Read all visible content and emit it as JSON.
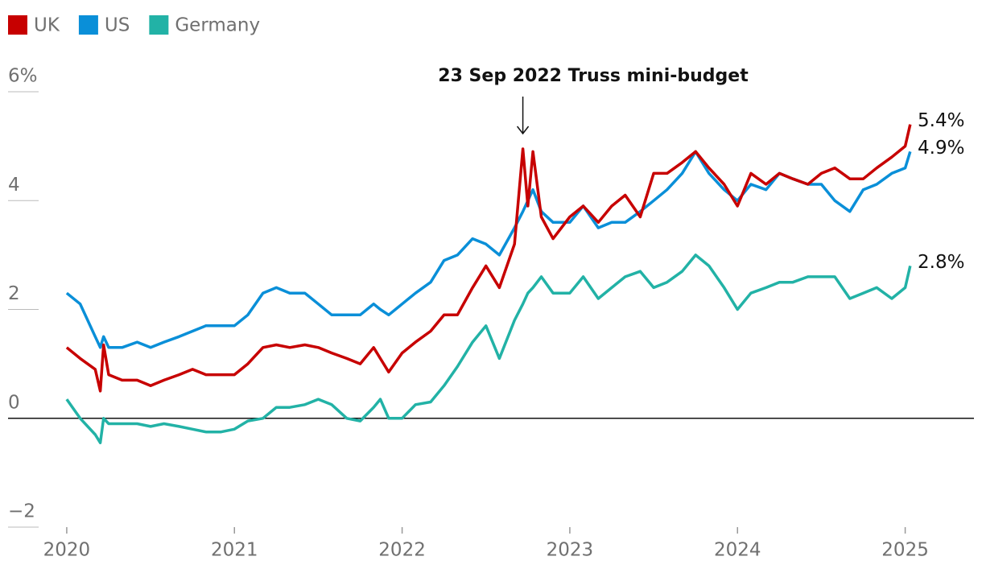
{
  "chart_data": {
    "type": "line",
    "x": [
      2020,
      2020.08,
      2020.17,
      2020.2,
      2020.22,
      2020.25,
      2020.33,
      2020.42,
      2020.5,
      2020.58,
      2020.67,
      2020.75,
      2020.83,
      2020.92,
      2021,
      2021.08,
      2021.17,
      2021.25,
      2021.33,
      2021.42,
      2021.5,
      2021.58,
      2021.67,
      2021.75,
      2021.83,
      2021.87,
      2021.92,
      2022,
      2022.08,
      2022.17,
      2022.25,
      2022.33,
      2022.42,
      2022.5,
      2022.58,
      2022.67,
      2022.72,
      2022.75,
      2022.78,
      2022.83,
      2022.9,
      2023,
      2023.08,
      2023.17,
      2023.25,
      2023.33,
      2023.42,
      2023.5,
      2023.58,
      2023.67,
      2023.75,
      2023.83,
      2023.92,
      2024,
      2024.08,
      2024.17,
      2024.25,
      2024.33,
      2024.42,
      2024.5,
      2024.58,
      2024.67,
      2024.75,
      2024.83,
      2024.92,
      2025,
      2025.03
    ],
    "series": [
      {
        "name": "UK",
        "color": "#c70000",
        "end_label": "5.4%",
        "values": [
          1.3,
          1.1,
          0.9,
          0.5,
          1.35,
          0.8,
          0.7,
          0.7,
          0.6,
          0.7,
          0.8,
          0.9,
          0.8,
          0.8,
          0.8,
          1.0,
          1.3,
          1.35,
          1.3,
          1.35,
          1.3,
          1.2,
          1.1,
          1.0,
          1.3,
          1.1,
          0.85,
          1.2,
          1.4,
          1.6,
          1.9,
          1.9,
          2.4,
          2.8,
          2.4,
          3.2,
          4.95,
          3.9,
          4.9,
          3.7,
          3.3,
          3.7,
          3.9,
          3.6,
          3.9,
          4.1,
          3.7,
          4.5,
          4.5,
          4.7,
          4.9,
          4.6,
          4.3,
          3.9,
          4.5,
          4.3,
          4.5,
          4.4,
          4.3,
          4.5,
          4.6,
          4.4,
          4.4,
          4.6,
          4.8,
          5.0,
          5.4
        ]
      },
      {
        "name": "US",
        "color": "#0a8fd8",
        "end_label": "4.9%",
        "values": [
          2.3,
          2.1,
          1.5,
          1.3,
          1.5,
          1.3,
          1.3,
          1.4,
          1.3,
          1.4,
          1.5,
          1.6,
          1.7,
          1.7,
          1.7,
          1.9,
          2.3,
          2.4,
          2.3,
          2.3,
          2.1,
          1.9,
          1.9,
          1.9,
          2.1,
          2.0,
          1.9,
          2.1,
          2.3,
          2.5,
          2.9,
          3.0,
          3.3,
          3.2,
          3.0,
          3.5,
          3.8,
          4.0,
          4.2,
          3.8,
          3.6,
          3.6,
          3.9,
          3.5,
          3.6,
          3.6,
          3.8,
          4.0,
          4.2,
          4.5,
          4.9,
          4.5,
          4.2,
          4.0,
          4.3,
          4.2,
          4.5,
          4.4,
          4.3,
          4.3,
          4.0,
          3.8,
          4.2,
          4.3,
          4.5,
          4.6,
          4.9
        ]
      },
      {
        "name": "Germany",
        "color": "#22b2a6",
        "end_label": "2.8%",
        "values": [
          0.35,
          0.0,
          -0.3,
          -0.45,
          0.0,
          -0.1,
          -0.1,
          -0.1,
          -0.15,
          -0.1,
          -0.15,
          -0.2,
          -0.25,
          -0.25,
          -0.2,
          -0.05,
          0.0,
          0.2,
          0.2,
          0.25,
          0.35,
          0.25,
          0.0,
          -0.05,
          0.2,
          0.35,
          0.0,
          0.0,
          0.25,
          0.3,
          0.6,
          0.95,
          1.4,
          1.7,
          1.1,
          1.8,
          2.1,
          2.3,
          2.4,
          2.6,
          2.3,
          2.3,
          2.6,
          2.2,
          2.4,
          2.6,
          2.7,
          2.4,
          2.5,
          2.7,
          3.0,
          2.8,
          2.4,
          2.0,
          2.3,
          2.4,
          2.5,
          2.5,
          2.6,
          2.6,
          2.6,
          2.2,
          2.3,
          2.4,
          2.2,
          2.4,
          2.8
        ]
      }
    ],
    "annotation": {
      "text": "23 Sep 2022 Truss mini-budget",
      "x": 2022.72
    },
    "xlim": [
      2019.65,
      2025.41
    ],
    "xticks": [
      2020,
      2021,
      2022,
      2023,
      2024,
      2025
    ],
    "ylim": [
      -2,
      6
    ],
    "yticks": [
      {
        "value": -2,
        "label": "−2"
      },
      0,
      2,
      4,
      {
        "value": 6,
        "label": "6%"
      }
    ]
  }
}
